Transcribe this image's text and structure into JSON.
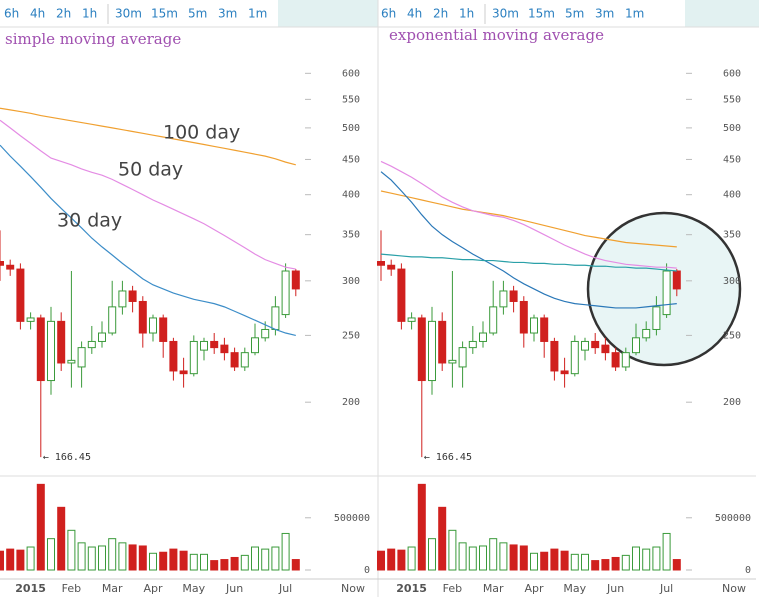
{
  "toolbars": [
    [
      "6h",
      "4h",
      "2h",
      "1h",
      "30m",
      "15m",
      "5m",
      "3m",
      "1m"
    ],
    [
      "6h",
      "4h",
      "2h",
      "1h",
      "30m",
      "15m",
      "5m",
      "3m",
      "1m"
    ]
  ],
  "chart_data": [
    {
      "type": "candlestick",
      "title": "simple moving average",
      "categories": [
        null,
        null,
        null,
        "2015",
        null,
        null,
        null,
        "Feb",
        null,
        null,
        null,
        "Mar",
        null,
        null,
        null,
        "Apr",
        null,
        null,
        null,
        "May",
        null,
        null,
        null,
        "Jun",
        null,
        null,
        null,
        null,
        "Jul",
        null
      ],
      "x_end_label": "Now",
      "open": [
        320,
        316,
        312,
        262,
        265,
        215,
        262,
        228,
        225,
        240,
        245,
        252,
        275,
        290,
        280,
        252,
        265,
        245,
        222,
        220,
        238,
        245,
        242,
        236,
        225,
        236,
        248,
        255,
        268,
        310
      ],
      "high": [
        355,
        322,
        318,
        270,
        268,
        275,
        270,
        310,
        245,
        258,
        262,
        300,
        300,
        295,
        285,
        268,
        268,
        248,
        232,
        250,
        248,
        252,
        248,
        240,
        240,
        260,
        262,
        285,
        318,
        312
      ],
      "low": [
        300,
        305,
        255,
        255,
        166.45,
        205,
        222,
        210,
        210,
        235,
        240,
        250,
        268,
        270,
        240,
        245,
        232,
        215,
        210,
        218,
        230,
        235,
        230,
        222,
        222,
        234,
        245,
        250,
        265,
        285
      ],
      "close": [
        316,
        312,
        262,
        265,
        215,
        262,
        228,
        230,
        240,
        245,
        252,
        275,
        290,
        280,
        252,
        265,
        245,
        222,
        220,
        245,
        245,
        240,
        236,
        225,
        236,
        248,
        255,
        275,
        310,
        292
      ],
      "up_color": "#3a9a3a",
      "down_color": "#d0201e",
      "log_scale": true,
      "ylim": [
        160,
        640
      ],
      "yticks": [
        200,
        250,
        300,
        350,
        400,
        450,
        500,
        550,
        600
      ],
      "volume": {
        "values": [
          180000,
          200000,
          190000,
          220000,
          820000,
          300000,
          600000,
          380000,
          260000,
          220000,
          230000,
          300000,
          260000,
          240000,
          230000,
          160000,
          170000,
          200000,
          180000,
          150000,
          150000,
          90000,
          100000,
          120000,
          140000,
          220000,
          200000,
          220000,
          350000,
          100000
        ],
        "ylim": [
          0,
          900000
        ],
        "yticks": [
          0,
          500000
        ]
      },
      "series": [
        {
          "name": "100 day",
          "color": "#f0a030",
          "values": [
            534,
            531,
            528,
            525,
            521,
            518,
            515,
            512,
            509,
            506,
            503,
            500,
            497,
            494,
            491,
            488,
            485,
            482,
            479,
            476,
            473,
            470,
            467,
            464,
            461,
            458,
            455,
            451,
            446,
            442
          ]
        },
        {
          "name": "50 day",
          "color": "#e48ce4",
          "values": [
            513,
            500,
            487,
            475,
            463,
            452,
            447,
            442,
            436,
            431,
            427,
            421,
            414,
            407,
            400,
            393,
            387,
            381,
            375,
            369,
            363,
            356,
            349,
            342,
            335,
            328,
            322,
            318,
            314,
            312
          ]
        },
        {
          "name": "30 day",
          "color": "#3c8dc8",
          "values": [
            472,
            455,
            440,
            425,
            410,
            395,
            382,
            370,
            358,
            346,
            336,
            327,
            318,
            310,
            302,
            296,
            292,
            288,
            285,
            282,
            280,
            278,
            275,
            271,
            267,
            263,
            259,
            255,
            252,
            250
          ]
        }
      ],
      "annotations": [
        {
          "text": "← 166.45",
          "value": 166.45
        }
      ]
    },
    {
      "type": "candlestick",
      "title": "exponential moving average",
      "categories": [
        null,
        null,
        null,
        "2015",
        null,
        null,
        null,
        "Feb",
        null,
        null,
        null,
        "Mar",
        null,
        null,
        null,
        "Apr",
        null,
        null,
        null,
        "May",
        null,
        null,
        null,
        "Jun",
        null,
        null,
        null,
        null,
        "Jul",
        null
      ],
      "x_end_label": "Now",
      "open": [
        320,
        316,
        312,
        262,
        265,
        215,
        262,
        228,
        225,
        240,
        245,
        252,
        275,
        290,
        280,
        252,
        265,
        245,
        222,
        220,
        238,
        245,
        242,
        236,
        225,
        236,
        248,
        255,
        268,
        310
      ],
      "high": [
        355,
        322,
        318,
        270,
        268,
        275,
        270,
        310,
        245,
        258,
        262,
        300,
        300,
        295,
        285,
        268,
        268,
        248,
        232,
        250,
        248,
        252,
        248,
        240,
        240,
        260,
        262,
        285,
        318,
        312
      ],
      "low": [
        300,
        305,
        255,
        255,
        166.45,
        205,
        222,
        210,
        210,
        235,
        240,
        250,
        268,
        270,
        240,
        245,
        232,
        215,
        210,
        218,
        230,
        235,
        230,
        222,
        222,
        234,
        245,
        250,
        265,
        285
      ],
      "close": [
        316,
        312,
        262,
        265,
        215,
        262,
        228,
        230,
        240,
        245,
        252,
        275,
        290,
        280,
        252,
        265,
        245,
        222,
        220,
        245,
        245,
        240,
        236,
        225,
        236,
        248,
        255,
        275,
        310,
        292
      ],
      "up_color": "#3a9a3a",
      "down_color": "#d0201e",
      "log_scale": true,
      "ylim": [
        160,
        640
      ],
      "yticks": [
        200,
        250,
        300,
        350,
        400,
        450,
        500,
        550,
        600
      ],
      "volume": {
        "values": [
          180000,
          200000,
          190000,
          220000,
          820000,
          300000,
          600000,
          380000,
          260000,
          220000,
          230000,
          300000,
          260000,
          240000,
          230000,
          160000,
          170000,
          200000,
          180000,
          150000,
          150000,
          90000,
          100000,
          120000,
          140000,
          220000,
          200000,
          220000,
          350000,
          100000
        ],
        "ylim": [
          0,
          900000
        ],
        "yticks": [
          0,
          500000
        ]
      },
      "series": [
        {
          "color": "#f0a030",
          "values": [
            405,
            402,
            399,
            396,
            393,
            390,
            387,
            384,
            381,
            379,
            377,
            375,
            373,
            370,
            367,
            364,
            361,
            358,
            355,
            352,
            349,
            347,
            345,
            343,
            341,
            340,
            339,
            338,
            337,
            336
          ]
        },
        {
          "color": "#e48ce4",
          "values": [
            447,
            440,
            432,
            424,
            415,
            406,
            397,
            390,
            384,
            379,
            376,
            373,
            371,
            367,
            362,
            356,
            350,
            344,
            338,
            333,
            328,
            324,
            321,
            319,
            317,
            316,
            315,
            314,
            314,
            313
          ]
        },
        {
          "color": "#2a78b8",
          "values": [
            432,
            420,
            405,
            390,
            374,
            360,
            350,
            342,
            335,
            328,
            322,
            316,
            310,
            303,
            297,
            292,
            287,
            283,
            280,
            278,
            277,
            276,
            275,
            274,
            274,
            274,
            275,
            276,
            277,
            278
          ]
        },
        {
          "color": "#2aa0a8",
          "values": [
            328,
            327,
            326,
            325,
            325,
            324,
            324,
            323,
            322,
            322,
            321,
            321,
            320,
            319,
            319,
            318,
            318,
            317,
            317,
            316,
            316,
            315,
            315,
            314,
            314,
            313,
            313,
            312,
            311,
            310
          ]
        }
      ],
      "annotations": [
        {
          "text": "← 166.45",
          "value": 166.45
        }
      ]
    }
  ]
}
